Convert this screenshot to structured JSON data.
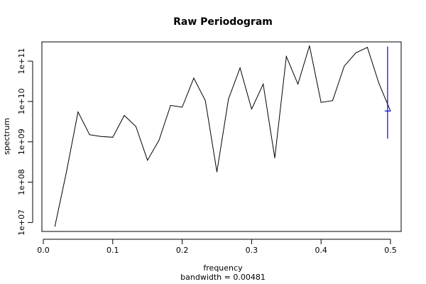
{
  "chart_data": {
    "type": "line",
    "title": "Raw Periodogram",
    "xlabel": "frequency",
    "xlabel2": "bandwidth = 0.00481",
    "ylabel": "spectrum",
    "xlim": [
      0.0,
      0.5
    ],
    "ylim": [
      6000000.0,
      300000000000.0
    ],
    "y_scale": "log",
    "grid": false,
    "x_ticks": [
      0.0,
      0.1,
      0.2,
      0.3,
      0.4,
      0.5
    ],
    "x_tick_labels": [
      "0.0",
      "0.1",
      "0.2",
      "0.3",
      "0.4",
      "0.5"
    ],
    "y_ticks": [
      10000000.0,
      100000000.0,
      1000000000.0,
      10000000000.0,
      100000000000.0
    ],
    "y_tick_labels": [
      "1e+07",
      "1e+08",
      "1e+09",
      "1e+10",
      "1e+11"
    ],
    "series": [
      {
        "color": "#000000",
        "x": [
          0.0167,
          0.0333,
          0.05,
          0.0667,
          0.0833,
          0.1,
          0.1167,
          0.1333,
          0.15,
          0.1667,
          0.1833,
          0.2,
          0.2167,
          0.2333,
          0.25,
          0.2667,
          0.2833,
          0.3,
          0.3167,
          0.3333,
          0.35,
          0.3667,
          0.3833,
          0.4,
          0.4167,
          0.4333,
          0.45,
          0.4667,
          0.4833,
          0.5
        ],
        "y": [
          8000000.0,
          180000000.0,
          5500000000.0,
          1500000000.0,
          1350000000.0,
          1300000000.0,
          4500000000.0,
          2400000000.0,
          350000000.0,
          1100000000.0,
          8000000000.0,
          7200000000.0,
          38000000000.0,
          10500000000.0,
          180000000.0,
          11500000000.0,
          68000000000.0,
          6500000000.0,
          27000000000.0,
          400000000.0,
          130000000000.0,
          27000000000.0,
          240000000000.0,
          9500000000.0,
          10500000000.0,
          75000000000.0,
          160000000000.0,
          220000000000.0,
          28000000000.0,
          5800000000.0
        ]
      }
    ],
    "confidence_bar": {
      "color": "#0000ff",
      "x": 0.4958,
      "center": 5800000000.0,
      "lower": 1200000000.0,
      "upper": 230000000000.0
    }
  }
}
